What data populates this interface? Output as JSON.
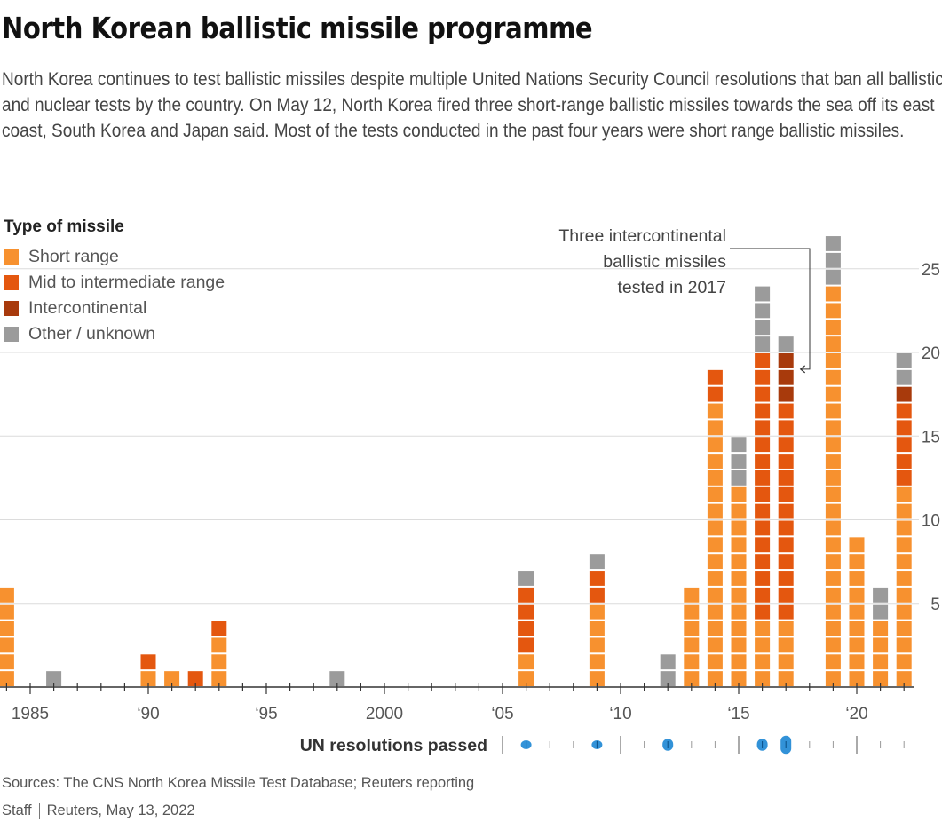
{
  "header": {
    "title": "North Korean ballistic missile programme",
    "subtitle": "North Korea continues to test ballistic missiles despite multiple United Nations Security Council resolutions that ban all ballistic and nuclear tests by the country. On May 12, North Korea fired three short-range ballistic missiles towards the sea off its east coast, South Korea and Japan said. Most of the tests conducted in the past four years were short range ballistic missiles."
  },
  "legend": {
    "title": "Type of missile",
    "items": [
      {
        "label": "Short range",
        "color": "#F7912F"
      },
      {
        "label": "Mid to intermediate range",
        "color": "#E4570F"
      },
      {
        "label": "Intercontinental",
        "color": "#A83A0C"
      },
      {
        "label": "Other / unknown",
        "color": "#9B9B9B"
      }
    ]
  },
  "chart_data": {
    "type": "bar",
    "stacked": true,
    "title": "North Korean ballistic missile programme",
    "xlabel": "",
    "ylabel": "",
    "ylim": [
      0,
      27
    ],
    "yticks": [
      5,
      10,
      15,
      20,
      25
    ],
    "xlim": [
      1984,
      2022
    ],
    "xtick_labels": [
      {
        "year": 1985,
        "label": "1985"
      },
      {
        "year": 1990,
        "label": "‘90"
      },
      {
        "year": 1995,
        "label": "‘95"
      },
      {
        "year": 2000,
        "label": "2000"
      },
      {
        "year": 2005,
        "label": "‘05"
      },
      {
        "year": 2010,
        "label": "‘10"
      },
      {
        "year": 2015,
        "label": "‘15"
      },
      {
        "year": 2020,
        "label": "‘20"
      }
    ],
    "grid": true,
    "legend_position": "top-left",
    "series_names": [
      "Short range",
      "Mid to intermediate range",
      "Intercontinental",
      "Other / unknown"
    ],
    "bars": [
      {
        "year": 1984,
        "values": [
          6,
          0,
          0,
          0
        ]
      },
      {
        "year": 1986,
        "values": [
          0,
          0,
          0,
          1
        ]
      },
      {
        "year": 1990,
        "values": [
          1,
          1,
          0,
          0
        ]
      },
      {
        "year": 1991,
        "values": [
          1,
          0,
          0,
          0
        ]
      },
      {
        "year": 1992,
        "values": [
          0,
          1,
          0,
          0
        ]
      },
      {
        "year": 1993,
        "values": [
          3,
          1,
          0,
          0
        ]
      },
      {
        "year": 1998,
        "values": [
          0,
          0,
          0,
          1
        ]
      },
      {
        "year": 2006,
        "values": [
          2,
          4,
          0,
          1
        ]
      },
      {
        "year": 2009,
        "values": [
          5,
          2,
          0,
          1
        ]
      },
      {
        "year": 2012,
        "values": [
          0,
          0,
          0,
          2
        ]
      },
      {
        "year": 2013,
        "values": [
          6,
          0,
          0,
          0
        ]
      },
      {
        "year": 2014,
        "values": [
          17,
          2,
          0,
          0
        ]
      },
      {
        "year": 2015,
        "values": [
          12,
          0,
          0,
          3
        ]
      },
      {
        "year": 2016,
        "values": [
          4,
          16,
          0,
          4
        ]
      },
      {
        "year": 2017,
        "values": [
          4,
          13,
          3,
          1
        ]
      },
      {
        "year": 2019,
        "values": [
          24,
          0,
          0,
          3
        ]
      },
      {
        "year": 2020,
        "values": [
          9,
          0,
          0,
          0
        ]
      },
      {
        "year": 2021,
        "values": [
          4,
          0,
          0,
          2
        ]
      },
      {
        "year": 2022,
        "values": [
          12,
          5,
          1,
          2
        ]
      }
    ],
    "annotation": {
      "text_lines": [
        "Three intercontinental",
        "ballistic missiles",
        "tested in 2017"
      ],
      "target_year": 2017,
      "target_value": 19
    },
    "un_resolutions": {
      "label": "UN resolutions passed",
      "year_range": [
        2005,
        2022
      ],
      "color": "#1C86D4",
      "events": [
        {
          "year": 2006,
          "count": 1
        },
        {
          "year": 2009,
          "count": 1
        },
        {
          "year": 2012,
          "count": 2
        },
        {
          "year": 2016,
          "count": 2
        },
        {
          "year": 2017,
          "count": 4
        }
      ]
    }
  },
  "footer": {
    "sources": "Sources: The CNS North Korea Missile Test Database; Reuters reporting",
    "credit_author": "Staff",
    "credit_outlet": "Reuters, May 13, 2022"
  }
}
